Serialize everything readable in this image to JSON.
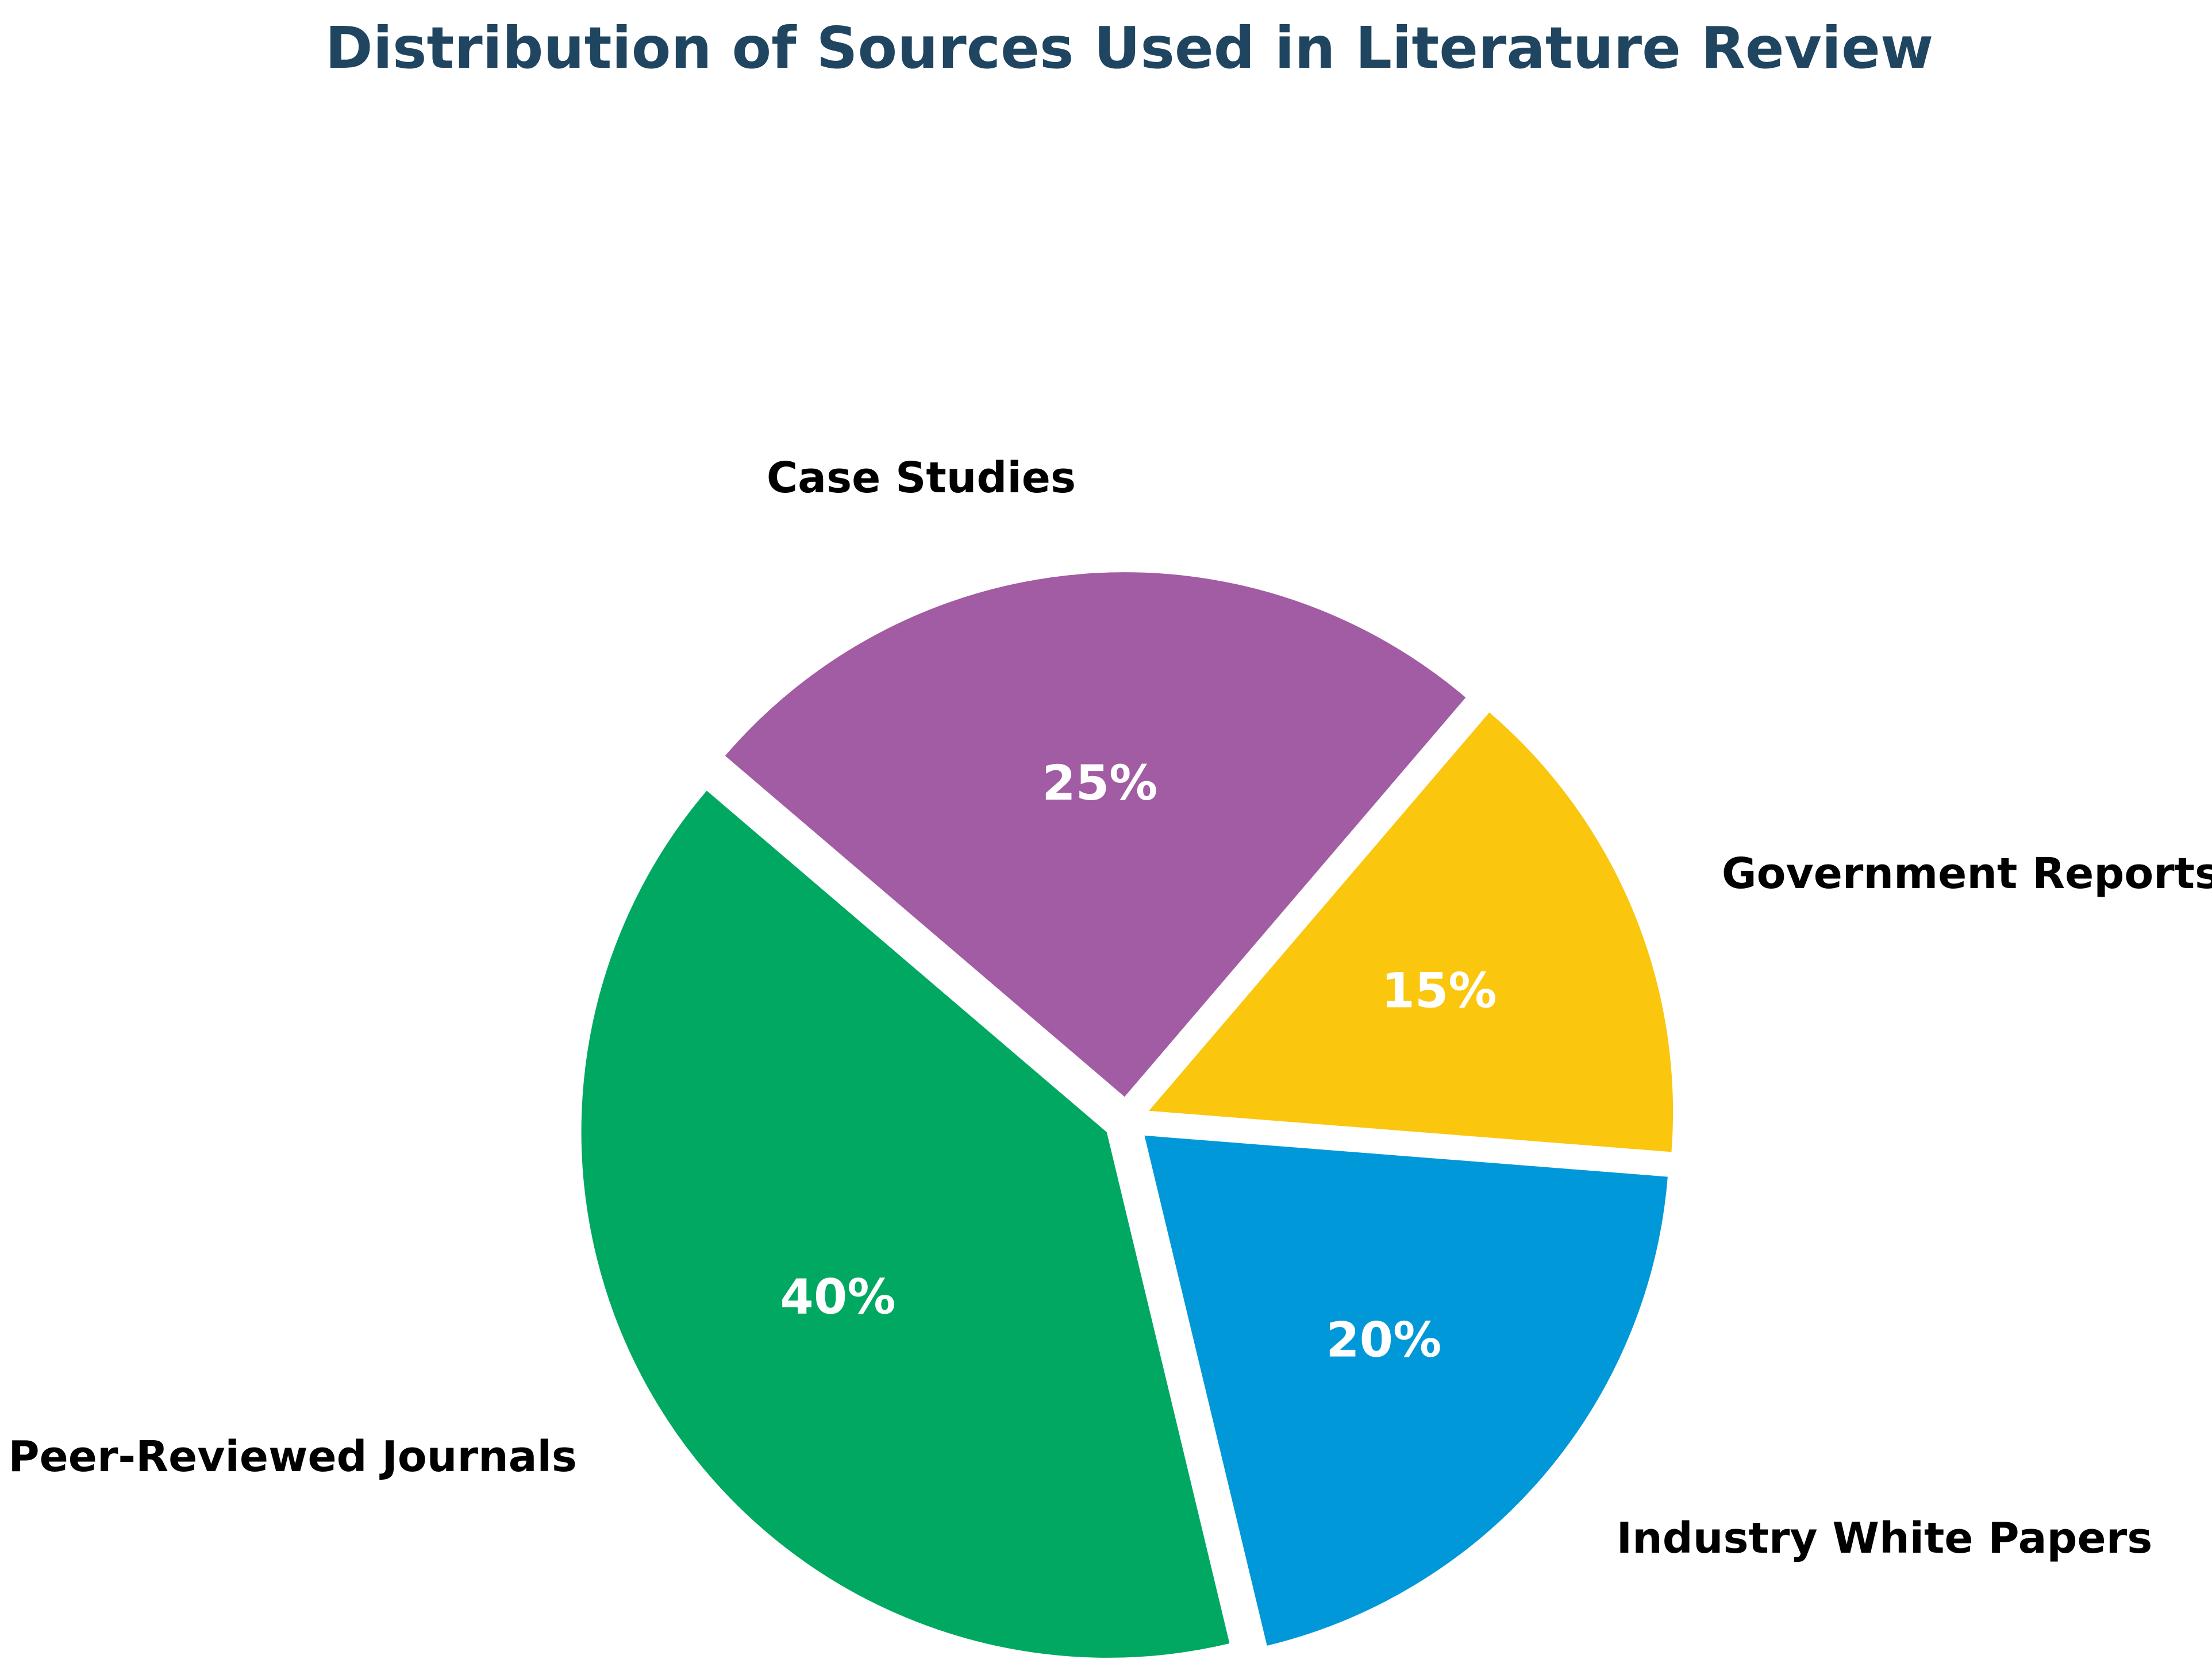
{
  "chart_data": {
    "type": "pie",
    "title": "Distribution of Sources Used in Literature Review",
    "slices": [
      {
        "label": "Peer-Reviewed Journals",
        "value": 40,
        "pct_label": "40%",
        "color": "#00a862"
      },
      {
        "label": "Industry White Papers",
        "value": 20,
        "pct_label": "20%",
        "color": "#0098d8"
      },
      {
        "label": "Government Reports",
        "value": 15,
        "pct_label": "15%",
        "color": "#fac60e"
      },
      {
        "label": "Case Studies",
        "value": 25,
        "pct_label": "25%",
        "color": "#a25ca3"
      }
    ],
    "exploded": true,
    "legend": "none"
  }
}
